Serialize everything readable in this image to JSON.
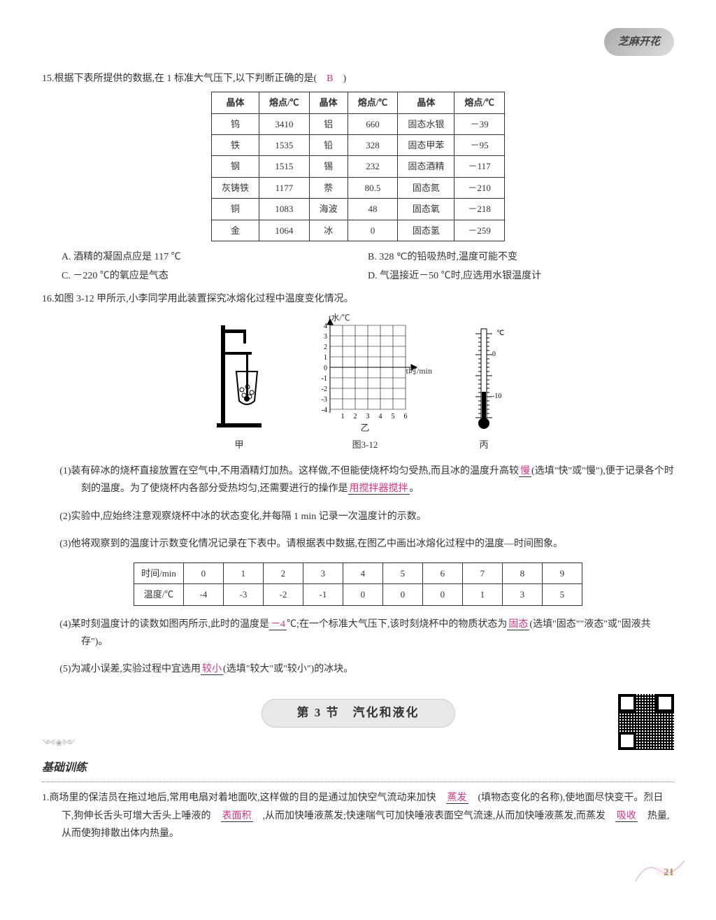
{
  "logo_text": "芝麻开花",
  "page_number": "21",
  "q15": {
    "stem": "15.根据下表所提供的数据,在 1 标准大气压下,以下判断正确的是(　",
    "stem_end": "　)",
    "answer_letter": "B",
    "table": {
      "headers": [
        "晶体",
        "熔点/℃",
        "晶体",
        "熔点/℃",
        "晶体",
        "熔点/℃"
      ],
      "rows": [
        [
          "钨",
          "3410",
          "铝",
          "660",
          "固态水银",
          "－39"
        ],
        [
          "铁",
          "1535",
          "铅",
          "328",
          "固态甲苯",
          "－95"
        ],
        [
          "钢",
          "1515",
          "锡",
          "232",
          "固态酒精",
          "－117"
        ],
        [
          "灰铸铁",
          "1177",
          "萘",
          "80.5",
          "固态氮",
          "－210"
        ],
        [
          "铜",
          "1083",
          "海波",
          "48",
          "固态氧",
          "－218"
        ],
        [
          "金",
          "1064",
          "冰",
          "0",
          "固态氢",
          "－259"
        ]
      ]
    },
    "opts": {
      "A": "A. 酒精的凝固点应是 117 ℃",
      "B": "B. 328 ℃的铅吸热时,温度可能不变",
      "C": "C. －220 ℃的氧应是气态",
      "D": "D. 气温接近－50 ℃时,应选用水银温度计"
    }
  },
  "q16": {
    "stem": "16.如图 3-12 甲所示,小李同学用此装置探究冰熔化过程中温度变化情况。",
    "fig_label_jia": "甲",
    "fig_label_yi": "乙",
    "fig_label_bing": "丙",
    "fig_caption": "图3-12",
    "chart": {
      "y_label": "t水/℃",
      "x_label": "t时/min",
      "y_ticks": [
        "4",
        "3",
        "2",
        "1",
        "0",
        "-1",
        "-2",
        "-3",
        "-4"
      ],
      "x_ticks": [
        "1",
        "2",
        "3",
        "4",
        "5",
        "6"
      ]
    },
    "thermo": {
      "unit": "℃",
      "ticks": [
        "0",
        "-10"
      ]
    },
    "p1_a": "(1)装有碎冰的烧杯直接放置在空气中,不用酒精灯加热。这样做,不但能使烧杯均匀受热,而且冰的温度升高较",
    "p1_ans1": "慢",
    "p1_b": "(选填\"快\"或\"慢\"),便于记录各个时刻的温度。为了使烧杯内各部分受热均匀,还需要进行的操作是",
    "p1_ans2": "用搅拌器搅拌",
    "p1_c": "。",
    "p2": "(2)实验中,应始终注意观察烧杯中冰的状态变化,并每隔 1 min 记录一次温度计的示数。",
    "p3": "(3)他将观察到的温度计示数变化情况记录在下表中。请根据表中数据,在图乙中画出冰熔化过程中的温度—时间图象。",
    "time_table": {
      "row1_head": "时间/min",
      "row1": [
        "0",
        "1",
        "2",
        "3",
        "4",
        "5",
        "6",
        "7",
        "8",
        "9"
      ],
      "row2_head": "温度/℃",
      "row2": [
        "-4",
        "-3",
        "-2",
        "-1",
        "0",
        "0",
        "0",
        "1",
        "3",
        "5"
      ]
    },
    "p4_a": "(4)某时刻温度计的读数如图丙所示,此时的温度是",
    "p4_ans1": "－4",
    "p4_b": "℃;在一个标准大气压下,该时刻烧杯中的物质状态为",
    "p4_ans2": "固态",
    "p4_c": "(选填\"固态\"\"液态\"或\"固液共存\")。",
    "p5_a": "(5)为减小误差,实验过程中宜选用",
    "p5_ans": "较小",
    "p5_b": "(选填\"较大\"或\"较小\")的冰块。"
  },
  "section": {
    "title": "第 3 节　汽化和液化",
    "subhead": "基础训练",
    "q1_a": "1.商场里的保洁员在拖过地后,常用电扇对着地面吹,这样做的目的是通过加快空气流动来加快　",
    "q1_ans1": "蒸发",
    "q1_b": "　(填物态变化的名称),使地面尽快变干。烈日下,狗伸长舌头可增大舌头上唾液的　",
    "q1_ans2": "表面积",
    "q1_c": "　,从而加快唾液蒸发;快速喘气可加快唾液表面空气流速,从而加快唾液蒸发,而蒸发　",
    "q1_ans3": "吸收",
    "q1_d": "　热量,从而使狗排散出体内热量。"
  }
}
